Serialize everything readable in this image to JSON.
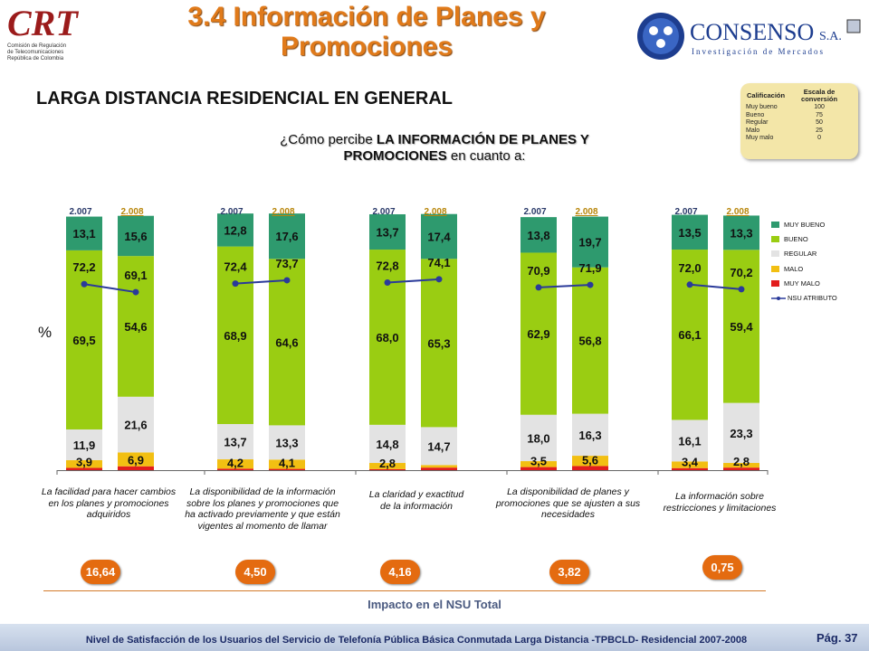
{
  "header": {
    "title_line1": "3.4 Información de Planes y",
    "title_line2": "Promociones",
    "crt_logo_text": "CRT",
    "crt_sub1": "Comisión de Regulación",
    "crt_sub2": "de Telecomunicaciones",
    "crt_sub3": "República de Colombia",
    "consenso_name": "CONSENSO",
    "consenso_suffix": "S.A.",
    "consenso_tagline": "Investigación de Mercados"
  },
  "section_title": "LARGA DISTANCIA RESIDENCIAL EN GENERAL",
  "question": {
    "prefix": "¿Cómo percibe ",
    "bold1": "LA INFORMACIÓN DE PLANES Y",
    "bold2": "PROMOCIONES",
    "suffix": " en cuanto a:"
  },
  "scale": {
    "col1": "Calificación",
    "col2": "Escala de conversión",
    "rows": [
      {
        "label": "Muy bueno",
        "value": "100"
      },
      {
        "label": "Bueno",
        "value": "75"
      },
      {
        "label": "Regular",
        "value": "50"
      },
      {
        "label": "Malo",
        "value": "25"
      },
      {
        "label": "Muy malo",
        "value": "0"
      }
    ]
  },
  "y_unit": "%",
  "chart_data": {
    "type": "bar",
    "stacked": true,
    "ylim": [
      0,
      100
    ],
    "year_labels": [
      "2.007",
      "2.008"
    ],
    "colors": {
      "muy_bueno": "#2e9a6e",
      "bueno": "#9acd12",
      "regular": "#e3e3e3",
      "malo": "#f2bf12",
      "muy_malo": "#e21d1d",
      "nsu_line": "#2a3a9a"
    },
    "legend": [
      "MUY BUENO",
      "BUENO",
      "REGULAR",
      "MALO",
      "MUY MALO",
      "NSU ATRIBUTO"
    ],
    "legend_position": "right",
    "groups": [
      {
        "category": "La facilidad para hacer cambios en los planes y promociones adquiridos",
        "impact": "16,64",
        "bars": [
          {
            "year": "2.007",
            "muy_malo": 0.9,
            "malo": 3.0,
            "regular": 11.9,
            "bueno": 69.5,
            "muy_bueno": 13.1,
            "malo_label": "3,9",
            "regular_label": "11,9",
            "bueno_label": "69,5",
            "muy_bueno_label": "13,1",
            "nsu": 72.2,
            "nsu_label": "72,2"
          },
          {
            "year": "2.008",
            "muy_malo": 1.5,
            "malo": 5.4,
            "regular": 21.6,
            "bueno": 54.6,
            "muy_bueno": 15.6,
            "malo_label": "6,9",
            "regular_label": "21,6",
            "bueno_label": "54,6",
            "muy_bueno_label": "15,6",
            "nsu": 69.1,
            "nsu_label": "69,1"
          }
        ]
      },
      {
        "category": "La disponibilidad de la información sobre los planes y promociones que ha activado previamente y que están vigentes al momento de llamar",
        "impact": "4,50",
        "bars": [
          {
            "year": "2.007",
            "muy_malo": 0.6,
            "malo": 3.6,
            "regular": 13.7,
            "bueno": 68.9,
            "muy_bueno": 12.8,
            "malo_label": "4,2",
            "regular_label": "13,7",
            "bueno_label": "68,9",
            "muy_bueno_label": "12,8",
            "nsu": 72.4,
            "nsu_label": "72,4"
          },
          {
            "year": "2.008",
            "muy_malo": 0.5,
            "malo": 3.6,
            "regular": 13.3,
            "bueno": 64.6,
            "muy_bueno": 17.6,
            "malo_label": "4,1",
            "regular_label": "13,3",
            "bueno_label": "64,6",
            "muy_bueno_label": "17,6",
            "nsu": 73.7,
            "nsu_label": "73,7"
          }
        ]
      },
      {
        "category": "La claridad y exactitud de la información",
        "impact": "4,16",
        "bars": [
          {
            "year": "2.007",
            "muy_malo": 0.4,
            "malo": 2.4,
            "regular": 14.8,
            "bueno": 68.0,
            "muy_bueno": 13.7,
            "malo_label": "2,8",
            "regular_label": "14,8",
            "bueno_label": "68,0",
            "muy_bueno_label": "13,7",
            "nsu": 72.8,
            "nsu_label": "72,8"
          },
          {
            "year": "2.008",
            "muy_malo": 1.0,
            "malo": 1.0,
            "regular": 14.7,
            "bueno": 65.3,
            "muy_bueno": 17.4,
            "malo_label": "",
            "regular_label": "14,7",
            "bueno_label": "65,3",
            "muy_bueno_label": "17,4",
            "nsu": 74.1,
            "nsu_label": "74,1"
          }
        ]
      },
      {
        "category": "La disponibilidad de planes y promociones que se ajusten a sus necesidades",
        "impact": "3,82",
        "bars": [
          {
            "year": "2.007",
            "muy_malo": 1.2,
            "malo": 2.3,
            "regular": 18.0,
            "bueno": 62.9,
            "muy_bueno": 13.8,
            "malo_label": "3,5",
            "regular_label": "18,0",
            "bueno_label": "62,9",
            "muy_bueno_label": "13,8",
            "nsu": 70.9,
            "nsu_label": "70,9"
          },
          {
            "year": "2.008",
            "muy_malo": 1.6,
            "malo": 4.0,
            "regular": 16.3,
            "bueno": 56.8,
            "muy_bueno": 19.7,
            "malo_label": "5,6",
            "regular_label": "16,3",
            "bueno_label": "56,8",
            "muy_bueno_label": "19,7",
            "nsu": 71.9,
            "nsu_label": "71,9"
          }
        ]
      },
      {
        "category": "La información sobre restricciones y limitaciones",
        "impact": "0,75",
        "bars": [
          {
            "year": "2.007",
            "muy_malo": 0.8,
            "malo": 2.6,
            "regular": 16.1,
            "bueno": 66.1,
            "muy_bueno": 13.5,
            "malo_label": "3,4",
            "regular_label": "16,1",
            "bueno_label": "66,1",
            "muy_bueno_label": "13,5",
            "nsu": 72.0,
            "nsu_label": "72,0"
          },
          {
            "year": "2.008",
            "muy_malo": 1.0,
            "malo": 1.8,
            "regular": 23.3,
            "bueno": 59.4,
            "muy_bueno": 13.3,
            "malo_label": "2,8",
            "regular_label": "23,3",
            "bueno_label": "59,4",
            "muy_bueno_label": "13,3",
            "nsu": 70.2,
            "nsu_label": "70,2"
          }
        ]
      }
    ]
  },
  "impact_label": "Impacto en el NSU Total",
  "footer": {
    "text": "Nivel de Satisfacción de los Usuarios del Servicio de Telefonía Pública Básica Conmutada Larga Distancia -TPBCLD- Residencial 2007-2008",
    "page": "Pág. 37"
  }
}
